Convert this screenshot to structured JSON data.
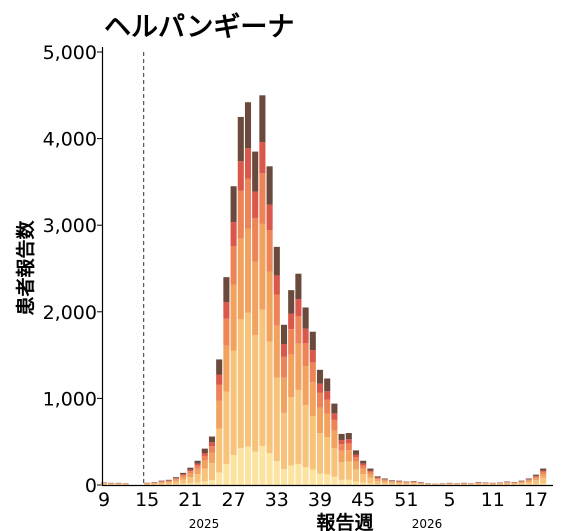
{
  "chart_data": {
    "type": "bar",
    "stacked": true,
    "title": "ヘルパンギーナ",
    "xlabel": "報告週",
    "ylabel": "患者報告数",
    "ylim": [
      0,
      5000
    ],
    "yticks": [
      "0",
      "1,000",
      "2,000",
      "3,000",
      "4,000",
      "5,000"
    ],
    "xticks": [
      "9",
      "15",
      "21",
      "27",
      "33",
      "39",
      "45",
      "51",
      "5",
      "11",
      "17"
    ],
    "year_labels": [
      "2025",
      "2026"
    ],
    "grid": false,
    "legend": "none",
    "reference_line_week": "15",
    "series_colors": [
      "#fde3a0",
      "#f7c27a",
      "#f2a25f",
      "#ec8458",
      "#d9574b",
      "#6b4a3e"
    ],
    "weeks": [
      "9",
      "10",
      "11",
      "12",
      "13",
      "14",
      "15",
      "16",
      "17",
      "18",
      "19",
      "20",
      "21",
      "22",
      "23",
      "24",
      "25",
      "26",
      "27",
      "28",
      "29",
      "30",
      "31",
      "32",
      "33",
      "34",
      "35",
      "36",
      "37",
      "38",
      "39",
      "40",
      "41",
      "42",
      "43",
      "44",
      "45",
      "46",
      "47",
      "48",
      "49",
      "50",
      "51",
      "52",
      "1",
      "2",
      "3",
      "4",
      "5",
      "6",
      "7",
      "8",
      "9",
      "10",
      "11",
      "12",
      "13",
      "14",
      "15",
      "16",
      "17",
      "18"
    ],
    "totals": [
      30,
      25,
      25,
      20,
      0,
      0,
      25,
      35,
      50,
      60,
      90,
      140,
      200,
      280,
      420,
      560,
      1450,
      2400,
      3450,
      4250,
      4420,
      3850,
      4500,
      3680,
      2750,
      1850,
      2250,
      2440,
      2050,
      1770,
      1330,
      1230,
      940,
      590,
      600,
      400,
      280,
      190,
      100,
      75,
      55,
      50,
      40,
      45,
      35,
      20,
      15,
      20,
      25,
      20,
      25,
      20,
      35,
      30,
      25,
      30,
      40,
      35,
      50,
      75,
      120,
      190
    ],
    "shares": [
      0.1,
      0.35,
      0.22,
      0.13,
      0.08,
      0.12
    ]
  }
}
